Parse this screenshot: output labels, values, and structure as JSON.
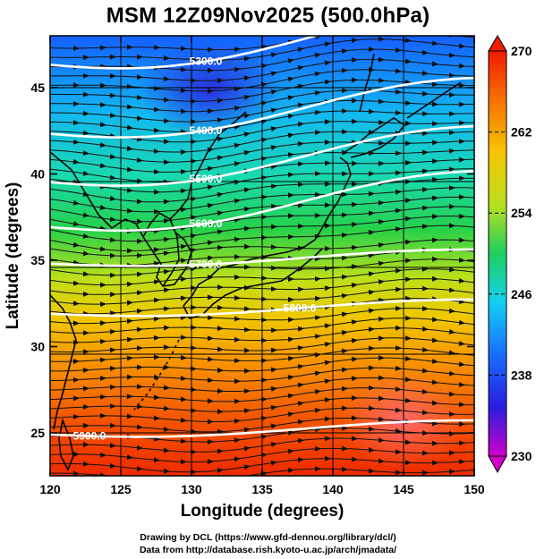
{
  "title": "MSM 12Z09Nov2025 (500.0hPa)",
  "x_axis": {
    "label": "Longitude (degrees)",
    "ticks": [
      "120",
      "125",
      "130",
      "135",
      "140",
      "145",
      "150"
    ]
  },
  "y_axis": {
    "label": "Latitude  (degrees)",
    "ticks": [
      "25",
      "30",
      "35",
      "40",
      "45"
    ]
  },
  "colorbar": {
    "labels": [
      "270",
      "262",
      "254",
      "246",
      "238",
      "230"
    ]
  },
  "contours": [
    {
      "label": "5300.0",
      "lat": 46.6
    },
    {
      "label": "5400.0",
      "lat": 42.6
    },
    {
      "label": "5500.0",
      "lat": 39.8
    },
    {
      "label": "5600.0",
      "lat": 37.2
    },
    {
      "label": "5700.0",
      "lat": 34.9
    },
    {
      "label": "5800.0",
      "lat": 32.0
    },
    {
      "label": "5900.0",
      "lat": 25.0
    }
  ],
  "credits": [
    "Drawing by DCL (https://www.gfd-dennou.org/library/dcl/)",
    "Data from http://database.rish.kyoto-u.ac.jp/arch/jmadata/"
  ]
}
